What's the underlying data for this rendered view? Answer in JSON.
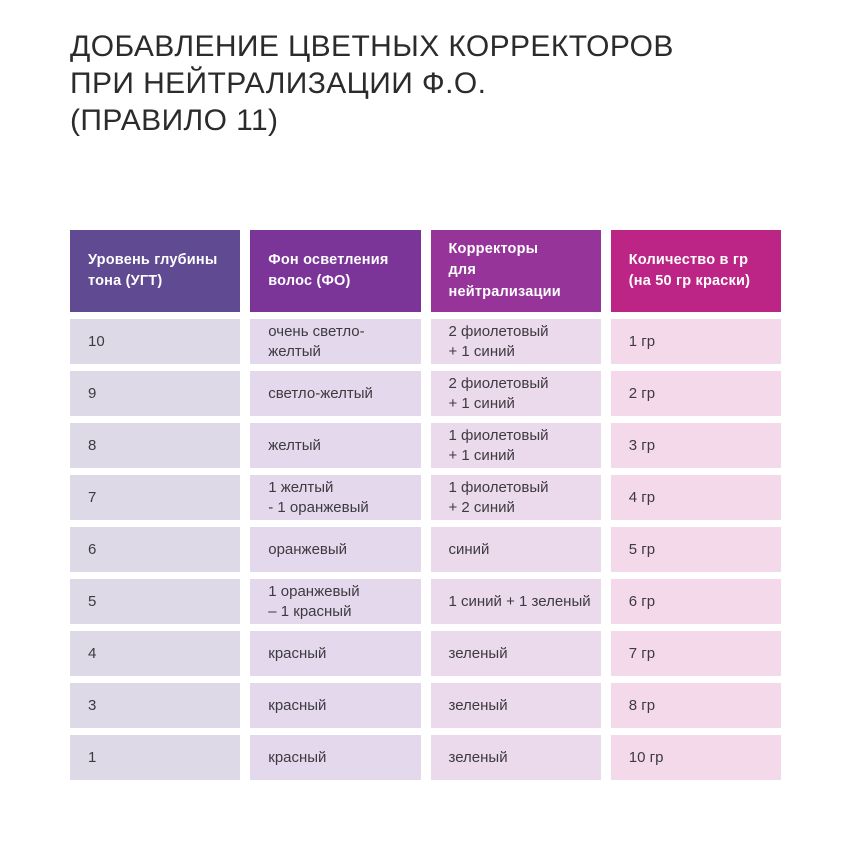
{
  "page": {
    "background": "#ffffff",
    "text_color": "#2b2b2b"
  },
  "title": {
    "lines": [
      "ДОБАВЛЕНИЕ ЦВЕТНЫХ КОРРЕКТОРОВ",
      "ПРИ НЕЙТРАЛИЗАЦИИ Ф.О.",
      "(ПРАВИЛО 11)"
    ]
  },
  "table": {
    "columns": [
      {
        "id": "ugt",
        "header": "Уровень глубины\nтона (УГТ)",
        "header_color": "#604b93",
        "cell_color": "#ded9e6"
      },
      {
        "id": "fo",
        "header": "Фон осветления\nволос (ФО)",
        "header_color": "#7b3498",
        "cell_color": "#e4d9ec"
      },
      {
        "id": "correctors",
        "header": "Корректоры\nдля нейтрализации",
        "header_color": "#96349a",
        "cell_color": "#ebdaec"
      },
      {
        "id": "amount",
        "header": "Количество в гр\n(на 50 гр краски)",
        "header_color": "#bc2586",
        "cell_color": "#f3d9e9"
      }
    ],
    "rows": [
      [
        "10",
        "очень светло-желтый",
        "2 фиолетовый\n+ 1 синий",
        "1 гр"
      ],
      [
        "9",
        "светло-желтый",
        "2 фиолетовый\n+ 1 синий",
        "2 гр"
      ],
      [
        "8",
        "желтый",
        "1 фиолетовый\n+ 1 синий",
        "3 гр"
      ],
      [
        "7",
        "1 желтый\n- 1 оранжевый",
        "1 фиолетовый\n+ 2 синий",
        "4 гр"
      ],
      [
        "6",
        "оранжевый",
        "синий",
        "5 гр"
      ],
      [
        "5",
        "1 оранжевый\n– 1 красный",
        "1 синий + 1 зеленый",
        "6 гр"
      ],
      [
        "4",
        "красный",
        "зеленый",
        "7 гр"
      ],
      [
        "3",
        "красный",
        "зеленый",
        "8 гр"
      ],
      [
        "1",
        "красный",
        "зеленый",
        "10 гр"
      ]
    ]
  }
}
